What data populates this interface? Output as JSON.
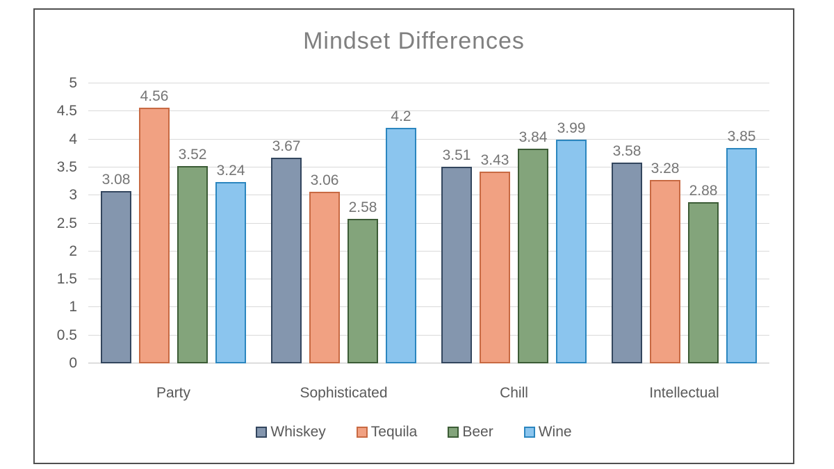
{
  "chart_data": {
    "type": "bar",
    "title": "Mindset Differences",
    "categories": [
      "Party",
      "Sophisticated",
      "Chill",
      "Intellectual"
    ],
    "series": [
      {
        "name": "Whiskey",
        "fill": "#8496AE",
        "border": "#33465E",
        "values": [
          3.08,
          3.67,
          3.51,
          3.58
        ],
        "labels": [
          "3.08",
          "3.67",
          "3.51",
          "3.58"
        ]
      },
      {
        "name": "Tequila",
        "fill": "#F1A182",
        "border": "#C86A43",
        "values": [
          4.56,
          3.06,
          3.43,
          3.28
        ],
        "labels": [
          "4.56",
          "3.06",
          "3.43",
          "3.28"
        ]
      },
      {
        "name": "Beer",
        "fill": "#83A47B",
        "border": "#3C5C36",
        "values": [
          3.52,
          2.58,
          3.84,
          2.88
        ],
        "labels": [
          "3.52",
          "2.58",
          "3.84",
          "2.88"
        ]
      },
      {
        "name": "Wine",
        "fill": "#8BC5EE",
        "border": "#2B86BF",
        "values": [
          3.24,
          4.2,
          3.99,
          3.85
        ],
        "labels": [
          "3.24",
          "4.2",
          "3.99",
          "3.85"
        ]
      }
    ],
    "ylim": [
      0,
      5
    ],
    "ytick_step": 0.5,
    "ytick_labels": [
      "5",
      "4.5",
      "4",
      "3.5",
      "3",
      "2.5",
      "2",
      "1.5",
      "1",
      "0.5",
      "0"
    ],
    "grid": true,
    "legend_position": "bottom",
    "colors": {
      "title_text": "#7F7F7F",
      "axis_text": "#595959",
      "data_label_text": "#757575",
      "gridline": "#D9D9D9",
      "frame_border": "#4F4F4F",
      "background": "#FFFFFF"
    }
  }
}
